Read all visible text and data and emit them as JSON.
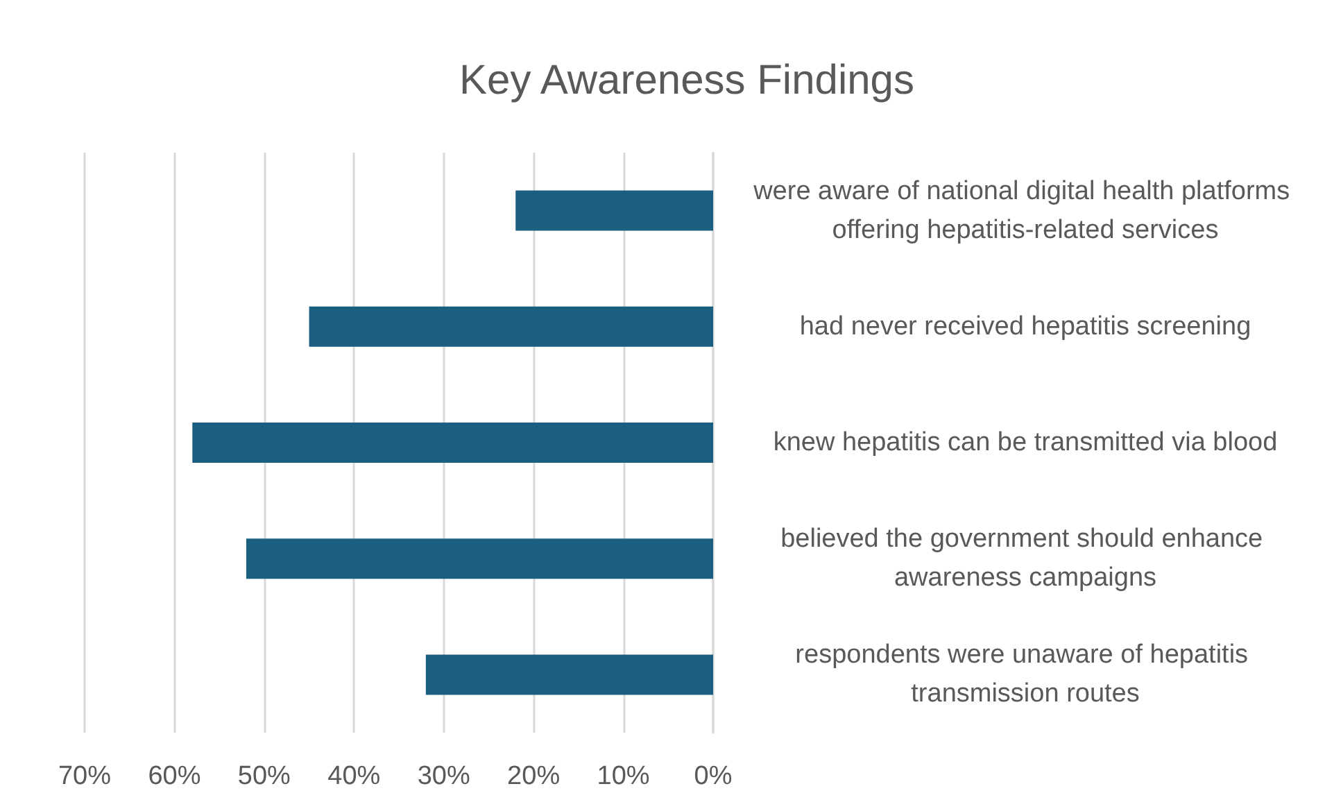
{
  "chart_data": {
    "type": "bar",
    "orientation": "horizontal",
    "title": "Key Awareness Findings",
    "categories": [
      "were aware of national digital health platforms offering hepatitis-related services",
      "had never received hepatitis screening",
      "knew hepatitis can be transmitted via blood",
      "believed the government should enhance awareness campaigns",
      "respondents were unaware of hepatitis transmission routes"
    ],
    "values": [
      22,
      45,
      58,
      52,
      32
    ],
    "color": "#1a5f80",
    "xlim": [
      70,
      0
    ],
    "xticks": [
      {
        "value": 70,
        "label": "70%"
      },
      {
        "value": 60,
        "label": "60%"
      },
      {
        "value": 50,
        "label": "50%"
      },
      {
        "value": 40,
        "label": "40%"
      },
      {
        "value": 30,
        "label": "30%"
      },
      {
        "value": 20,
        "label": "20%"
      },
      {
        "value": 10,
        "label": "10%"
      },
      {
        "value": 0,
        "label": "0%"
      }
    ],
    "grid": "x"
  }
}
